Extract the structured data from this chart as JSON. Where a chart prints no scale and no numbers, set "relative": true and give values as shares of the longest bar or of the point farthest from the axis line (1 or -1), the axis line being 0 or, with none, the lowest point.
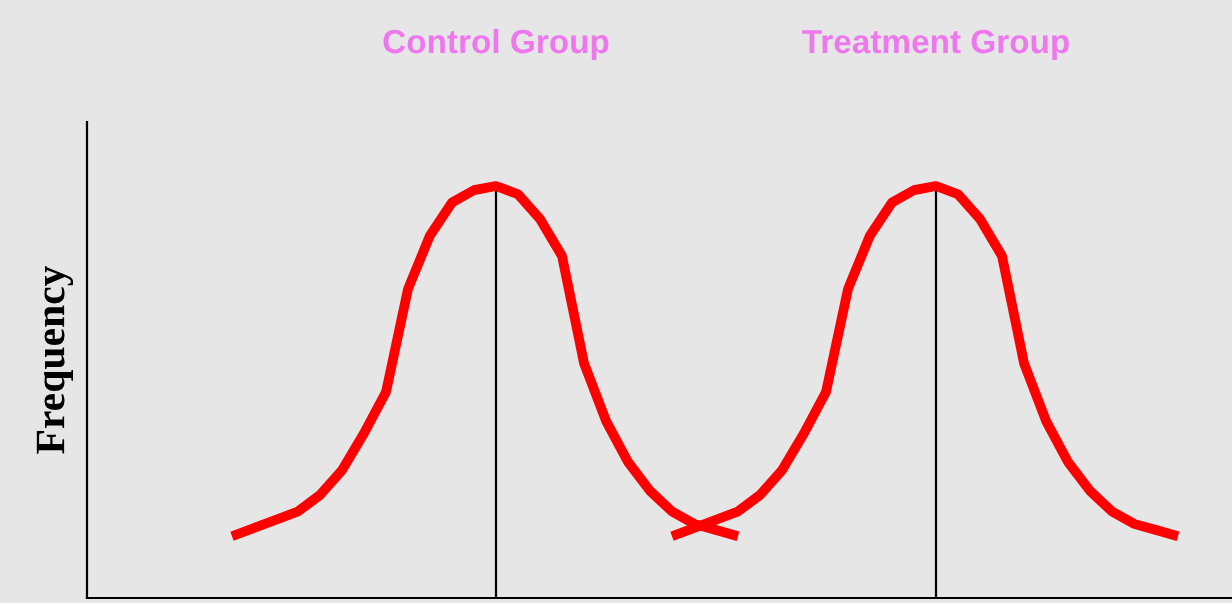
{
  "chart_data": {
    "type": "line",
    "relative": true,
    "ylabel": "Frequency",
    "annotations": [
      "Control Group",
      "Treatment Group"
    ],
    "categories": [
      null,
      null,
      null,
      null,
      null,
      null,
      null,
      null,
      null,
      null,
      null,
      null,
      null,
      null,
      null,
      null,
      null,
      null,
      null,
      null,
      null,
      null,
      null,
      null,
      null,
      null,
      null,
      null,
      null,
      null,
      null,
      null,
      null,
      null,
      null,
      null,
      null,
      null,
      null,
      null,
      null,
      null,
      null,
      null
    ],
    "series": [
      {
        "color": "#ff0000",
        "values": [
          0.15,
          0.17,
          0.19,
          0.21,
          0.25,
          0.31,
          0.4,
          0.5,
          0.75,
          0.88,
          0.96,
          0.99,
          1.0,
          0.98,
          0.92,
          0.83,
          0.57,
          0.43,
          0.33,
          0.26,
          0.21,
          0.18,
          0.165,
          0.15,
          null,
          null,
          null,
          null,
          null,
          null,
          null,
          null,
          null,
          null,
          null,
          null,
          null,
          null,
          null,
          null,
          null,
          null,
          null,
          null
        ]
      },
      {
        "color": "#ff0000",
        "values": [
          null,
          null,
          null,
          null,
          null,
          null,
          null,
          null,
          null,
          null,
          null,
          null,
          null,
          null,
          null,
          null,
          null,
          null,
          null,
          null,
          0.15,
          0.17,
          0.19,
          0.21,
          0.25,
          0.31,
          0.4,
          0.5,
          0.75,
          0.88,
          0.96,
          0.99,
          1.0,
          0.98,
          0.92,
          0.83,
          0.57,
          0.43,
          0.33,
          0.26,
          0.21,
          0.18,
          0.165,
          0.15
        ]
      }
    ],
    "marker": "none",
    "line_style": "solid"
  }
}
